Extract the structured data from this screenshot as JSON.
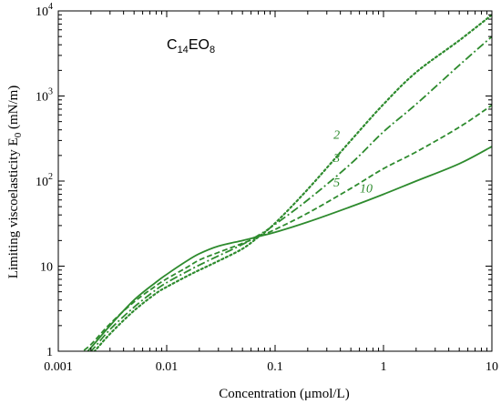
{
  "chart_data": {
    "type": "line",
    "title": "",
    "xlabel": "Concentration (μmol/L)",
    "ylabel": "Limiting viscoelasticity E",
    "ylabel_sub": "0",
    "ylabel_unit": " (mN/m)",
    "x_scale": "log",
    "y_scale": "log",
    "xlim": [
      0.001,
      10
    ],
    "ylim": [
      1,
      10000
    ],
    "grid": false,
    "line_color": "#2e8b2e",
    "x_ticks": [
      {
        "value": 0.001,
        "label": "0.001"
      },
      {
        "value": 0.01,
        "label": "0.01"
      },
      {
        "value": 0.1,
        "label": "0.1"
      },
      {
        "value": 1,
        "label": "1"
      },
      {
        "value": 10,
        "label": "10"
      }
    ],
    "y_ticks": [
      {
        "value": 1,
        "base": "1",
        "exp": ""
      },
      {
        "value": 10,
        "base": "10",
        "exp": ""
      },
      {
        "value": 100,
        "base": "10",
        "exp": "2"
      },
      {
        "value": 1000,
        "base": "10",
        "exp": "3"
      },
      {
        "value": 10000,
        "base": "10",
        "exp": "4"
      }
    ],
    "compound_label": {
      "main": "C",
      "sub1": "14",
      "mid": "EO",
      "sub2": "8"
    },
    "series": [
      {
        "label": "2",
        "style": "dotted",
        "x": [
          0.0015,
          0.002,
          0.003,
          0.005,
          0.008,
          0.01,
          0.015,
          0.02,
          0.03,
          0.05,
          0.07,
          0.1,
          0.2,
          0.5,
          1,
          2,
          5,
          10
        ],
        "y": [
          0.65,
          0.9,
          1.6,
          3.0,
          4.8,
          5.7,
          7.5,
          9.0,
          11.5,
          16,
          22,
          32,
          80,
          300,
          800,
          1900,
          4500,
          9000
        ]
      },
      {
        "label": "3",
        "style": "dashdot",
        "x": [
          0.0015,
          0.002,
          0.003,
          0.005,
          0.008,
          0.01,
          0.015,
          0.02,
          0.03,
          0.05,
          0.07,
          0.1,
          0.2,
          0.5,
          1,
          2,
          5,
          10
        ],
        "y": [
          0.75,
          1.0,
          1.8,
          3.3,
          5.3,
          6.4,
          8.5,
          10.3,
          13.2,
          18,
          23,
          31,
          60,
          160,
          380,
          800,
          2300,
          5000
        ]
      },
      {
        "label": "5",
        "style": "dashed",
        "x": [
          0.0015,
          0.002,
          0.003,
          0.005,
          0.008,
          0.01,
          0.015,
          0.02,
          0.03,
          0.05,
          0.07,
          0.1,
          0.2,
          0.5,
          1,
          2,
          5,
          10
        ],
        "y": [
          0.9,
          1.2,
          2.1,
          3.8,
          5.9,
          7.1,
          9.5,
          11.8,
          14.5,
          18.5,
          22,
          27,
          42,
          82,
          140,
          220,
          430,
          780
        ]
      },
      {
        "label": "10",
        "style": "solid",
        "x": [
          0.0015,
          0.002,
          0.003,
          0.005,
          0.008,
          0.01,
          0.015,
          0.02,
          0.03,
          0.05,
          0.07,
          0.1,
          0.2,
          0.5,
          1,
          2,
          5,
          10
        ],
        "y": [
          0.75,
          1.1,
          2.0,
          4.0,
          6.5,
          8.0,
          11.3,
          14.0,
          17.2,
          20.0,
          22.3,
          25,
          33,
          50,
          70,
          100,
          160,
          255
        ]
      }
    ]
  }
}
